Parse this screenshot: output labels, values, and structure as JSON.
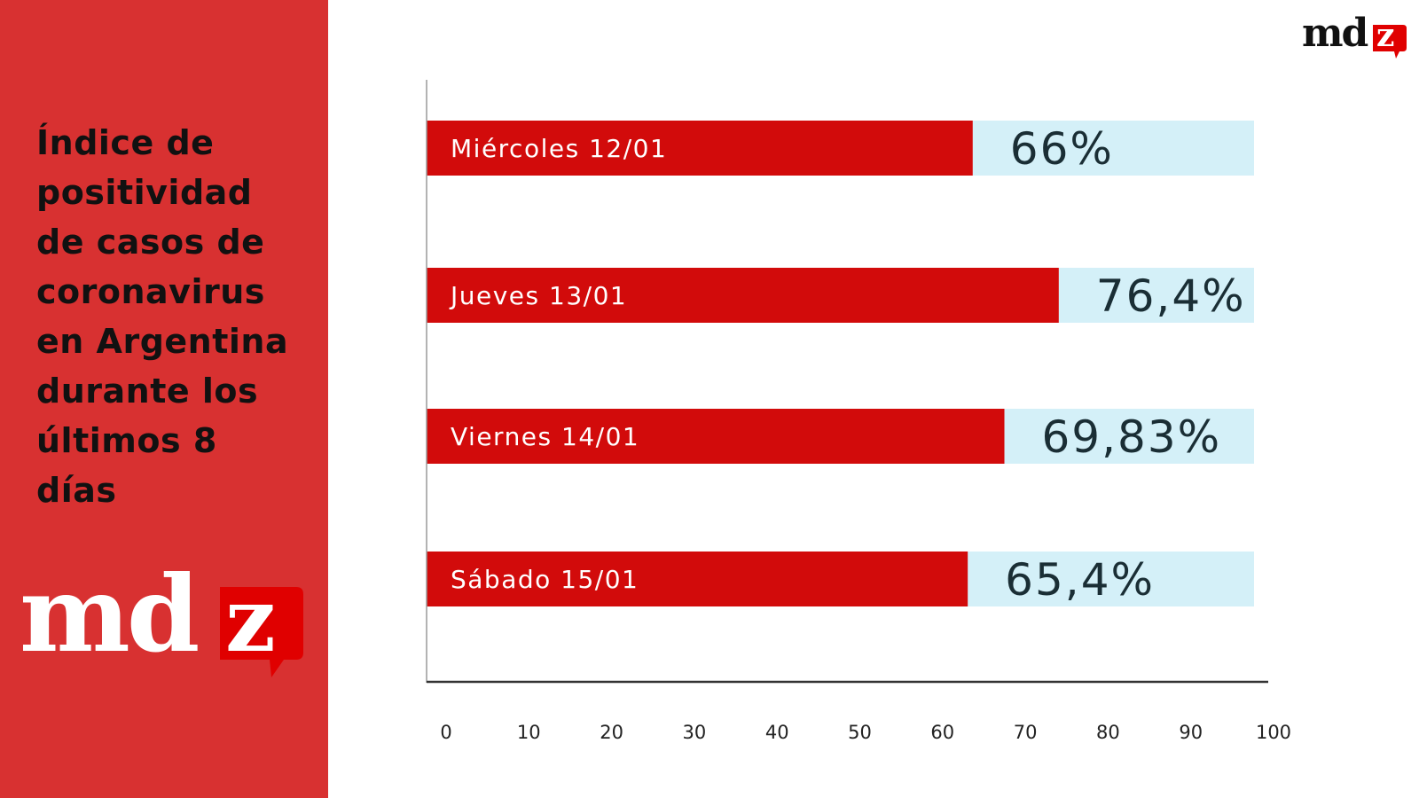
{
  "title_lines": [
    "Índice de",
    "positividad",
    "de casos de",
    "coronavirus",
    "en Argentina",
    "durante los",
    "últimos 8",
    "días"
  ],
  "brand": {
    "logo_text": "mdz",
    "logo_letters": [
      "md",
      "z"
    ],
    "logo_color": "#ffffff",
    "logo_accent": "#e00000",
    "top_logo_color": "#111111"
  },
  "colors": {
    "panel": "#d83131",
    "bar": "#d20b0b",
    "remainder": "#d4f0f8",
    "value_text": "#1a2e35",
    "axis": "#333333"
  },
  "chart_data": {
    "type": "bar",
    "orientation": "horizontal",
    "stacked_to": 100,
    "categories": [
      "Miércoles 12/01",
      "Jueves 13/01",
      "Viernes 14/01",
      "Sábado 15/01"
    ],
    "values": [
      66,
      76.4,
      69.83,
      65.4
    ],
    "value_labels": [
      "66%",
      "76,4%",
      "69,83%",
      "65,4%"
    ],
    "xlim": [
      0,
      100
    ],
    "xticks": [
      0,
      10,
      20,
      30,
      40,
      50,
      60,
      70,
      80,
      90,
      100
    ],
    "grid": false,
    "legend": "none",
    "title": "Índice de positividad de casos de coronavirus en Argentina durante los últimos 8 días"
  }
}
